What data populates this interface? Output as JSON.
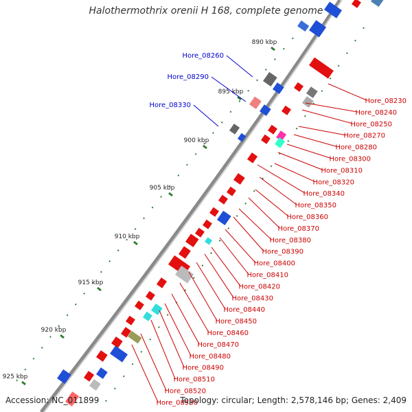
{
  "title": "Halothermothrix orenii H 168, complete genome",
  "accession": "Accession: NC_011899",
  "summary": "Topology: circular; Length: 2,578,146 bp; Genes: 2,409",
  "scale_labels": [
    "890 kbp",
    "895 kbp",
    "900 kbp",
    "905 kbp",
    "910 kbp",
    "915 kbp",
    "920 kbp",
    "925 kbp"
  ],
  "colors": {
    "forward_label": "#0000cc",
    "reverse_label": "#cc0000",
    "backbone": "#888888",
    "tick": "#2e7d32"
  },
  "genes_top": [
    {
      "label": "Hore_08260"
    },
    {
      "label": "Hore_08290"
    },
    {
      "label": "Hore_08330"
    }
  ],
  "genes_bottom": [
    {
      "label": "Hore_08230"
    },
    {
      "label": "Hore_08240"
    },
    {
      "label": "Hore_08250"
    },
    {
      "label": "Hore_08270"
    },
    {
      "label": "Hore_08280"
    },
    {
      "label": "Hore_08300"
    },
    {
      "label": "Hore_08310"
    },
    {
      "label": "Hore_08320"
    },
    {
      "label": "Hore_08340"
    },
    {
      "label": "Hore_08350"
    },
    {
      "label": "Hore_08360"
    },
    {
      "label": "Hore_08370"
    },
    {
      "label": "Hore_08380"
    },
    {
      "label": "Hore_08390"
    },
    {
      "label": "Hore_08400"
    },
    {
      "label": "Hore_08410"
    },
    {
      "label": "Hore_08420"
    },
    {
      "label": "Hore_08430"
    },
    {
      "label": "Hore_08440"
    },
    {
      "label": "Hore_08450"
    },
    {
      "label": "Hore_08460"
    },
    {
      "label": "Hore_08470"
    },
    {
      "label": "Hore_08480"
    },
    {
      "label": "Hore_08490"
    },
    {
      "label": "Hore_08510"
    },
    {
      "label": "Hore_08520"
    },
    {
      "label": "Hore_08530"
    }
  ]
}
